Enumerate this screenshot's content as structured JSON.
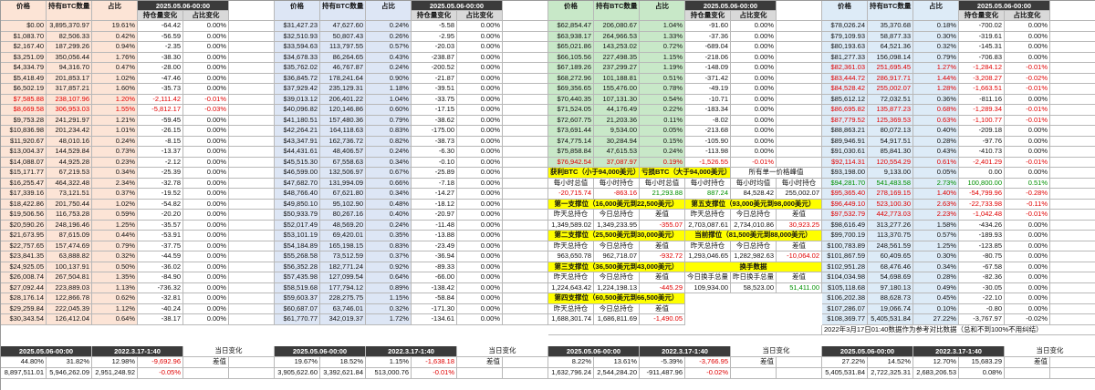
{
  "colors": {
    "orange": "#fce4d6",
    "blue": "#dde6f5",
    "green": "#c8e8c8",
    "lightblue": "#ddebf7",
    "header_dark": "#3b3b3b",
    "yellow": "#ffff00",
    "red": "#e00000",
    "green_text": "#009000"
  },
  "headers": {
    "price": "价格",
    "holding": "持有BTC数量",
    "pct": "占比",
    "date_hdr": "2025.05.06-00:00",
    "chg_hold": "持仓量变化",
    "chg_pct": "占比变化"
  },
  "blocks": [
    {
      "rows": [
        [
          "$0.00",
          "3,895,370.97",
          "19.61%",
          "-64.42",
          "0.00%"
        ],
        [
          "$1,083.70",
          "82,506.33",
          "0.42%",
          "-56.59",
          "0.00%"
        ],
        [
          "$2,167.40",
          "187,299.26",
          "0.94%",
          "-2.35",
          "0.00%"
        ],
        [
          "$3,251.09",
          "350,056.44",
          "1.76%",
          "-38.30",
          "0.00%"
        ],
        [
          "$4,334.79",
          "94,316.70",
          "0.47%",
          "-28.00",
          "0.00%"
        ],
        [
          "$5,418.49",
          "201,853.17",
          "1.02%",
          "-47.46",
          "0.00%"
        ],
        [
          "$6,502.19",
          "317,857.21",
          "1.60%",
          "-35.73",
          "0.00%"
        ],
        [
          "$7,585.88",
          "238,107.96",
          "1.20%",
          "-2,111.42",
          "-0.01%"
        ],
        [
          "$8,669.58",
          "306,953.03",
          "1.55%",
          "-5,812.17",
          "-0.03%"
        ],
        [
          "$9,753.28",
          "241,291.97",
          "1.21%",
          "-59.45",
          "0.00%"
        ],
        [
          "$10,836.98",
          "201,234.42",
          "1.01%",
          "-26.15",
          "0.00%"
        ],
        [
          "$11,920.67",
          "48,010.16",
          "0.24%",
          "-8.15",
          "0.00%"
        ],
        [
          "$13,004.37",
          "144,529.84",
          "0.73%",
          "-13.37",
          "0.00%"
        ],
        [
          "$14,088.07",
          "44,925.28",
          "0.23%",
          "-2.12",
          "0.00%"
        ],
        [
          "$15,171.77",
          "67,219.53",
          "0.34%",
          "-25.39",
          "0.00%"
        ],
        [
          "$16,255.47",
          "464,322.48",
          "2.34%",
          "-32.78",
          "0.00%"
        ],
        [
          "$17,339.16",
          "73,121.51",
          "0.37%",
          "-19.52",
          "0.00%"
        ],
        [
          "$18,422.86",
          "201,750.44",
          "1.02%",
          "-54.82",
          "0.00%"
        ],
        [
          "$19,506.56",
          "116,753.28",
          "0.59%",
          "-20.20",
          "0.00%"
        ],
        [
          "$20,590.26",
          "248,196.46",
          "1.25%",
          "-35.57",
          "0.00%"
        ],
        [
          "$21,673.95",
          "87,615.09",
          "0.44%",
          "-53.91",
          "0.00%"
        ],
        [
          "$22,757.65",
          "157,474.69",
          "0.79%",
          "-37.75",
          "0.00%"
        ],
        [
          "$23,841.35",
          "63,888.82",
          "0.32%",
          "-44.59",
          "0.00%"
        ],
        [
          "$24,925.05",
          "100,137.91",
          "0.50%",
          "-36.02",
          "0.00%"
        ],
        [
          "$26,008.74",
          "267,504.81",
          "1.35%",
          "-84.90",
          "0.00%"
        ],
        [
          "$27,092.44",
          "223,889.03",
          "1.13%",
          "-736.32",
          "0.00%"
        ],
        [
          "$28,176.14",
          "122,866.78",
          "0.62%",
          "-32.81",
          "0.00%"
        ],
        [
          "$29,259.84",
          "222,045.39",
          "1.12%",
          "-40.24",
          "0.00%"
        ],
        [
          "$30,343.54",
          "126,412.04",
          "0.64%",
          "-38.17",
          "0.00%"
        ]
      ],
      "red_rows": [
        7,
        8
      ]
    },
    {
      "rows": [
        [
          "$31,427.23",
          "47,627.60",
          "0.24%",
          "-5.58",
          "0.00%"
        ],
        [
          "$32,510.93",
          "50,807.43",
          "0.26%",
          "-2.95",
          "0.00%"
        ],
        [
          "$33,594.63",
          "113,797.55",
          "0.57%",
          "-20.03",
          "0.00%"
        ],
        [
          "$34,678.33",
          "86,264.65",
          "0.43%",
          "-238.87",
          "0.00%"
        ],
        [
          "$35,762.02",
          "46,767.87",
          "0.24%",
          "-200.52",
          "0.00%"
        ],
        [
          "$36,845.72",
          "178,241.64",
          "0.90%",
          "-21.87",
          "0.00%"
        ],
        [
          "$37,929.42",
          "235,129.31",
          "1.18%",
          "-39.51",
          "0.00%"
        ],
        [
          "$39,013.12",
          "206,401.22",
          "1.04%",
          "-33.75",
          "0.00%"
        ],
        [
          "$40,096.82",
          "120,146.86",
          "0.60%",
          "-17.15",
          "0.00%"
        ],
        [
          "$41,180.51",
          "157,480.36",
          "0.79%",
          "-38.62",
          "0.00%"
        ],
        [
          "$42,264.21",
          "164,118.63",
          "0.83%",
          "-175.00",
          "0.00%"
        ],
        [
          "$43,347.91",
          "162,736.72",
          "0.82%",
          "-38.73",
          "0.00%"
        ],
        [
          "$44,431.61",
          "48,406.57",
          "0.24%",
          "-6.30",
          "0.00%"
        ],
        [
          "$45,515.30",
          "67,558.63",
          "0.34%",
          "-0.10",
          "0.00%"
        ],
        [
          "$46,599.00",
          "132,506.97",
          "0.67%",
          "-25.89",
          "0.00%"
        ],
        [
          "$47,682.70",
          "131,994.09",
          "0.66%",
          "-7.18",
          "0.00%"
        ],
        [
          "$48,766.40",
          "67,621.80",
          "0.34%",
          "-14.27",
          "0.00%"
        ],
        [
          "$49,850.10",
          "95,102.90",
          "0.48%",
          "-18.12",
          "0.00%"
        ],
        [
          "$50,933.79",
          "80,267.16",
          "0.40%",
          "-20.97",
          "0.00%"
        ],
        [
          "$52,017.49",
          "48,569.20",
          "0.24%",
          "-11.48",
          "0.00%"
        ],
        [
          "$53,101.19",
          "69,420.01",
          "0.35%",
          "-13.88",
          "0.00%"
        ],
        [
          "$54,184.89",
          "165,198.15",
          "0.83%",
          "-23.49",
          "0.00%"
        ],
        [
          "$55,268.58",
          "73,512.59",
          "0.37%",
          "-36.94",
          "0.00%"
        ],
        [
          "$56,352.28",
          "182,771.24",
          "0.92%",
          "-89.33",
          "0.00%"
        ],
        [
          "$57,435.98",
          "127,099.54",
          "0.64%",
          "-66.00",
          "0.00%"
        ],
        [
          "$58,519.68",
          "177,794.12",
          "0.89%",
          "-138.42",
          "0.00%"
        ],
        [
          "$59,603.37",
          "228,275.75",
          "1.15%",
          "-58.84",
          "0.00%"
        ],
        [
          "$60,687.07",
          "63,746.01",
          "0.32%",
          "-171.30",
          "0.00%"
        ],
        [
          "$61,770.77",
          "342,019.37",
          "1.72%",
          "-134.61",
          "0.00%"
        ]
      ],
      "red_rows": []
    },
    {
      "rows": [
        [
          "$62,854.47",
          "206,080.67",
          "1.04%",
          "-91.60",
          "0.00%"
        ],
        [
          "$63,938.17",
          "264,966.53",
          "1.33%",
          "-37.36",
          "0.00%"
        ],
        [
          "$65,021.86",
          "143,253.02",
          "0.72%",
          "-689.04",
          "0.00%"
        ],
        [
          "$66,105.56",
          "227,498.35",
          "1.15%",
          "-218.06",
          "0.00%"
        ],
        [
          "$67,189.26",
          "237,299.27",
          "1.19%",
          "-148.09",
          "0.00%"
        ],
        [
          "$68,272.96",
          "101,188.81",
          "0.51%",
          "-371.42",
          "0.00%"
        ],
        [
          "$69,356.65",
          "155,476.00",
          "0.78%",
          "-49.19",
          "0.00%"
        ],
        [
          "$70,440.35",
          "107,131.30",
          "0.54%",
          "-10.71",
          "0.00%"
        ],
        [
          "$71,524.05",
          "44,176.49",
          "0.22%",
          "-183.34",
          "0.00%"
        ],
        [
          "$72,607.75",
          "21,203.36",
          "0.11%",
          "-8.02",
          "0.00%"
        ],
        [
          "$73,691.44",
          "9,534.00",
          "0.05%",
          "-213.68",
          "0.00%"
        ],
        [
          "$74,775.14",
          "30,284.94",
          "0.15%",
          "-105.90",
          "0.00%"
        ],
        [
          "$75,858.84",
          "47,615.53",
          "0.24%",
          "-113.98",
          "0.00%"
        ],
        [
          "$76,942.54",
          "37,087.97",
          "0.19%",
          "-1,526.55",
          "-0.01%"
        ]
      ],
      "red_rows": [
        13
      ]
    },
    {
      "rows": [
        [
          "$78,026.24",
          "35,370.68",
          "0.18%",
          "-700.02",
          "0.00%"
        ],
        [
          "$79,109.93",
          "58,877.33",
          "0.30%",
          "-319.61",
          "0.00%"
        ],
        [
          "$80,193.63",
          "64,521.36",
          "0.32%",
          "-145.31",
          "0.00%"
        ],
        [
          "$81,277.33",
          "156,098.14",
          "0.79%",
          "-706.83",
          "0.00%"
        ],
        [
          "$82,361.03",
          "251,695.45",
          "1.27%",
          "-1,284.12",
          "-0.01%"
        ],
        [
          "$83,444.72",
          "286,917.71",
          "1.44%",
          "-3,208.27",
          "-0.02%"
        ],
        [
          "$84,528.42",
          "255,002.07",
          "1.28%",
          "-1,663.51",
          "-0.01%"
        ],
        [
          "$85,612.12",
          "72,032.51",
          "0.36%",
          "-811.16",
          "0.00%"
        ],
        [
          "$86,695.82",
          "135,877.23",
          "0.68%",
          "-1,289.34",
          "-0.01%"
        ],
        [
          "$87,779.52",
          "125,369.53",
          "0.63%",
          "-1,100.77",
          "-0.01%"
        ],
        [
          "$88,863.21",
          "80,072.13",
          "0.40%",
          "-209.18",
          "0.00%"
        ],
        [
          "$89,946.91",
          "54,917.51",
          "0.28%",
          "-97.76",
          "0.00%"
        ],
        [
          "$91,030.61",
          "85,841.30",
          "0.43%",
          "-410.73",
          "0.00%"
        ],
        [
          "$92,114.31",
          "120,554.29",
          "0.61%",
          "-2,401.29",
          "-0.01%"
        ],
        [
          "$93,198.00",
          "9,133.00",
          "0.05%",
          "0.00",
          "0.00%"
        ],
        [
          "$94,281.70",
          "541,483.58",
          "2.73%",
          "100,800.00",
          "0.51%"
        ],
        [
          "$95,365.40",
          "278,169.15",
          "1.40%",
          "-54,799.96",
          "-0.28%"
        ],
        [
          "$96,449.10",
          "523,100.30",
          "2.63%",
          "-22,733.98",
          "-0.11%"
        ],
        [
          "$97,532.79",
          "442,773.03",
          "2.23%",
          "-1,042.48",
          "-0.01%"
        ],
        [
          "$98,616.49",
          "313,277.26",
          "1.58%",
          "-434.26",
          "0.00%"
        ],
        [
          "$99,700.19",
          "113,370.75",
          "0.57%",
          "-189.93",
          "0.00%"
        ],
        [
          "$100,783.89",
          "248,561.59",
          "1.25%",
          "-123.85",
          "0.00%"
        ],
        [
          "$101,867.59",
          "60,409.65",
          "0.30%",
          "-80.75",
          "0.00%"
        ],
        [
          "$102,951.28",
          "68,476.46",
          "0.34%",
          "-67.58",
          "0.00%"
        ],
        [
          "$104,034.98",
          "54,698.69",
          "0.28%",
          "-82.36",
          "0.00%"
        ],
        [
          "$105,118.68",
          "97,180.13",
          "0.49%",
          "-30.05",
          "0.00%"
        ],
        [
          "$106,202.38",
          "88,628.73",
          "0.45%",
          "-22.10",
          "0.00%"
        ],
        [
          "$107,286.07",
          "19,066.74",
          "0.10%",
          "-0.80",
          "0.00%"
        ],
        [
          "$108,369.77",
          "5,405,531.84",
          "27.22%",
          "-3,767.97",
          "-0.02%"
        ]
      ],
      "red_rows": [
        4,
        5,
        6,
        8,
        9,
        13,
        16,
        17,
        18
      ],
      "green_rows": [
        15
      ]
    }
  ],
  "green_panel": {
    "low_label": "获利BTC（小于94,000美元）",
    "high_label": "亏损BTC（大于94,000美元）",
    "top_label": "所有单一价格峰值",
    "sub1": "每小时总值",
    "sub2": "每小时持仓",
    "sub3": "每小时均值",
    "sub4": "每小时持仓",
    "r1": [
      "-20,715.74",
      "-863.16",
      "21,293.88",
      "887.24",
      "84,528.42"
    ],
    "r1b": "255,002.07",
    "sup1_title": "第一支撑位（16,000美元到22,500美元）",
    "sup5_title": "第五支撑位（93,000美元到98,000美元）",
    "yest": "昨天总持仓",
    "today": "今日总持仓",
    "diff": "差值",
    "sup1_vals": [
      "1,349,589.02",
      "1,349,233.95",
      "-355.07"
    ],
    "sup5_vals": [
      "2,703,087.61",
      "2,734,010.86",
      "30,923.25"
    ],
    "sup2_title": "第二支撑位（25,500美元到30,000美元）",
    "cur_title": "当前撑位（81,500美元到88,000美元）",
    "sup2_vals": [
      "963,650.78",
      "962,718.07",
      "-932.72"
    ],
    "cur_vals": [
      "1,293,046.65",
      "1,282,982.63",
      "-10,064.02"
    ],
    "sup3_title": "第三支撑位（36,500美元到43,000美元）",
    "hand_title": "换手数据",
    "sup3_vals": [
      "1,224,643.42",
      "1,224,198.13",
      "-445.29"
    ],
    "sup4_title": "第四支撑位（60,500美元到66,500美元）",
    "hand_sub1": "今日换手总量",
    "hand_sub2": "昨日换手总量",
    "hand_vals": [
      "109,934.00",
      "58,523.00",
      "51,411.00"
    ],
    "sup4_vals": [
      "1,688,301.74",
      "1,686,811.69",
      "-1,490.05"
    ]
  },
  "note": "2022年3月17日01:40数据作为参考对比数据（总和不到100%不用纠结）",
  "footer": {
    "date_a": "2025.05.06-00:00",
    "date_b": "2022.3.17-1:40",
    "today_chg": "当日变化",
    "diff": "差值",
    "blocks": [
      {
        "a1": "44.80%",
        "b1": "31.82%",
        "c1": "12.98%",
        "d1": "-9,692.96",
        "a2": "8,897,511.01",
        "b2": "5,946,262.09",
        "c2": "2,951,248.92",
        "d2": "-0.05%"
      },
      {
        "a1": "19.67%",
        "b1": "18.52%",
        "c1": "1.15%",
        "d1": "-1,638.18",
        "a2": "3,905,622.60",
        "b2": "3,392,621.84",
        "c2": "513,000.76",
        "d2": "-0.01%"
      },
      {
        "a1": "8.22%",
        "b1": "13.61%",
        "c1": "-5.39%",
        "d1": "-3,766.95",
        "a2": "1,632,796.24",
        "b2": "2,544,284.20",
        "c2": "-911,487.96",
        "d2": "-0.02%"
      },
      {
        "a1": "27.22%",
        "b1": "14.52%",
        "c1": "12.70%",
        "d1": "15,683.29",
        "a2": "5,405,531.84",
        "b2": "2,722,325.31",
        "c2": "2,683,206.53",
        "d2": "0.08%"
      }
    ]
  }
}
